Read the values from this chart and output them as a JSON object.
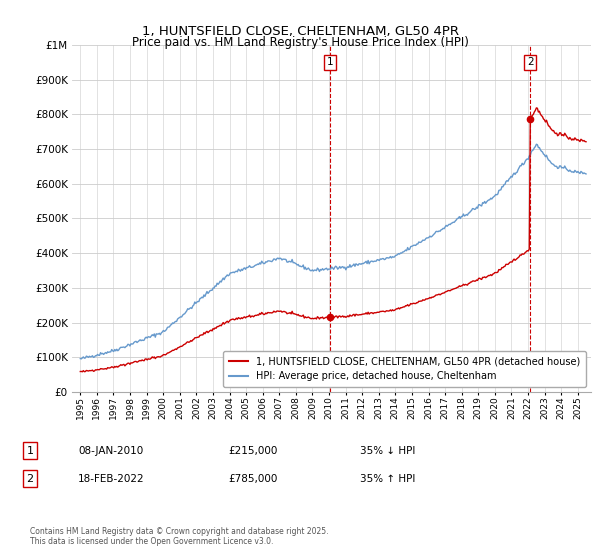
{
  "title": "1, HUNTSFIELD CLOSE, CHELTENHAM, GL50 4PR",
  "subtitle": "Price paid vs. HM Land Registry's House Price Index (HPI)",
  "legend_line1": "1, HUNTSFIELD CLOSE, CHELTENHAM, GL50 4PR (detached house)",
  "legend_line2": "HPI: Average price, detached house, Cheltenham",
  "annotation1_label": "1",
  "annotation1_date": "08-JAN-2010",
  "annotation1_price": "£215,000",
  "annotation1_hpi": "35% ↓ HPI",
  "annotation2_label": "2",
  "annotation2_date": "18-FEB-2022",
  "annotation2_price": "£785,000",
  "annotation2_hpi": "35% ↑ HPI",
  "footer": "Contains HM Land Registry data © Crown copyright and database right 2025.\nThis data is licensed under the Open Government Licence v3.0.",
  "hpi_color": "#6699cc",
  "price_color": "#cc0000",
  "annotation_color": "#cc0000",
  "background_color": "#ffffff",
  "grid_color": "#cccccc",
  "ylim": [
    0,
    1000000
  ],
  "yticks": [
    0,
    100000,
    200000,
    300000,
    400000,
    500000,
    600000,
    700000,
    800000,
    900000,
    1000000
  ],
  "t1": 2010.04,
  "t2": 2022.13,
  "price1": 215000,
  "price2": 785000
}
